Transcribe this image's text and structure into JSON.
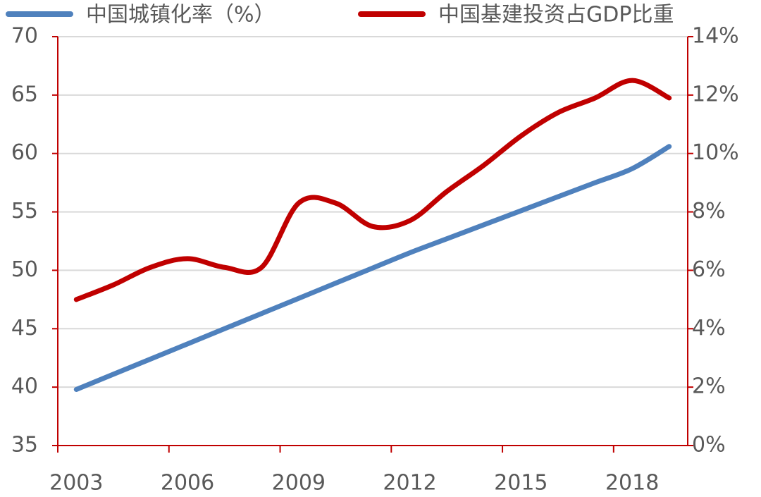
{
  "chart_data": {
    "type": "line",
    "categories": [
      "2003",
      null,
      null,
      "2006",
      null,
      null,
      "2009",
      null,
      null,
      "2012",
      null,
      null,
      "2015",
      null,
      null,
      "2018",
      null
    ],
    "series": [
      {
        "name": "中国城镇化率（%）",
        "color": "#4f81bd",
        "values": [
          39.8,
          41.1,
          42.4,
          43.7,
          45.0,
          46.3,
          47.6,
          48.9,
          50.2,
          51.5,
          52.7,
          53.9,
          55.1,
          56.3,
          57.5,
          58.7,
          60.6
        ]
      },
      {
        "name": "中国基建投资占GDP比重",
        "color": "#c00000",
        "axis": "y2",
        "values": [
          5.0,
          5.5,
          6.1,
          6.4,
          6.1,
          6.1,
          8.3,
          8.3,
          7.5,
          7.7,
          8.7,
          9.6,
          10.6,
          11.4,
          11.9,
          12.5,
          11.9
        ]
      }
    ],
    "ylim": [
      35,
      70
    ],
    "yticks": [
      35,
      40,
      45,
      50,
      55,
      60,
      65,
      70
    ],
    "y2lim": [
      0,
      14
    ],
    "y2ticks": [
      {
        "value": 0,
        "label": "0%"
      },
      {
        "value": 2,
        "label": "2%"
      },
      {
        "value": 4,
        "label": "4%"
      },
      {
        "value": 6,
        "label": "6%"
      },
      {
        "value": 8,
        "label": "8%"
      },
      {
        "value": 10,
        "label": "10%"
      },
      {
        "value": 12,
        "label": "12%"
      },
      {
        "value": 14,
        "label": "14%"
      }
    ],
    "grid": true,
    "axis_color": "#c00000"
  }
}
